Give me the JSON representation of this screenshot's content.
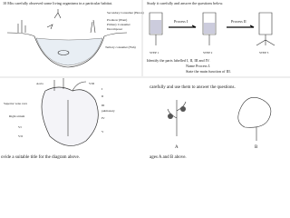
{
  "habitat": {
    "question": "10 Mix carefully observed some living organisms in a particular habitat.",
    "labels": [
      "Secondary Consumer (Heron)",
      "Producer (Plant)",
      "Primary Consumer",
      "Decomposer",
      "Tertiary consumer (Fish)"
    ]
  },
  "process": {
    "instruction": "Study it carefully and answer the questions below.",
    "processes": [
      "Process I",
      "Process II"
    ],
    "steps": [
      "STEP 1",
      "STEP 2",
      "STEP 3"
    ],
    "questions": [
      "Identify the parts labelled I, II, III and IV.",
      "Name Process I.",
      "State the main function of III."
    ]
  },
  "heart": {
    "labels": [
      "VIII",
      "I",
      "II",
      "III",
      "IV",
      "V",
      "VI",
      "VII",
      "Superior vena cava",
      "Aorta",
      "pulmonary",
      "Right atrium"
    ],
    "caption": "ovide a suitable title for the diagram above."
  },
  "plants": {
    "instruction": "carefully and use them to answer the questions.",
    "labels": [
      "A",
      "B"
    ],
    "footer": "ages A and B above."
  }
}
